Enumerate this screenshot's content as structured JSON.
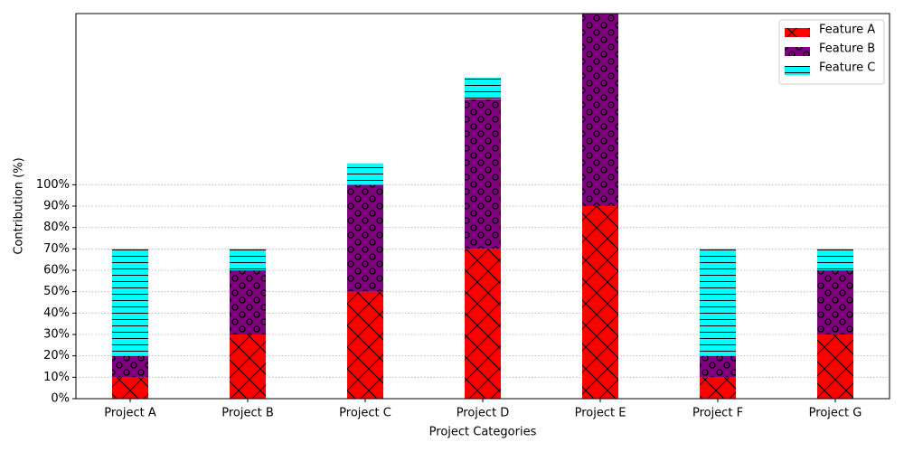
{
  "chart_data": {
    "type": "stacked_bar",
    "xlabel": "Project Categories",
    "ylabel": "Contribution (%)",
    "categories": [
      "Project A",
      "Project B",
      "Project C",
      "Project D",
      "Project E",
      "Project F",
      "Project G"
    ],
    "series": [
      {
        "name": "Feature A",
        "color": "#ff0000",
        "hatch": "x",
        "values": [
          10,
          30,
          50,
          70,
          90,
          10,
          30
        ]
      },
      {
        "name": "Feature B",
        "color": "#800080",
        "hatch": "o",
        "values": [
          10,
          30,
          50,
          70,
          90,
          10,
          30
        ]
      },
      {
        "name": "Feature C",
        "color": "#00ffff",
        "hatch": "-",
        "values": [
          50,
          10,
          10,
          10,
          0,
          50,
          10
        ]
      }
    ],
    "ylim": [
      0,
      180
    ],
    "yticks": [
      {
        "value": 0,
        "label": "0%"
      },
      {
        "value": 10,
        "label": "10%"
      },
      {
        "value": 20,
        "label": "20%"
      },
      {
        "value": 30,
        "label": "30%"
      },
      {
        "value": 40,
        "label": "40%"
      },
      {
        "value": 50,
        "label": "50%"
      },
      {
        "value": 60,
        "label": "60%"
      },
      {
        "value": 70,
        "label": "70%"
      },
      {
        "value": 80,
        "label": "80%"
      },
      {
        "value": 90,
        "label": "90%"
      },
      {
        "value": 100,
        "label": "100%"
      }
    ],
    "grid": true,
    "legend": "upper right"
  }
}
